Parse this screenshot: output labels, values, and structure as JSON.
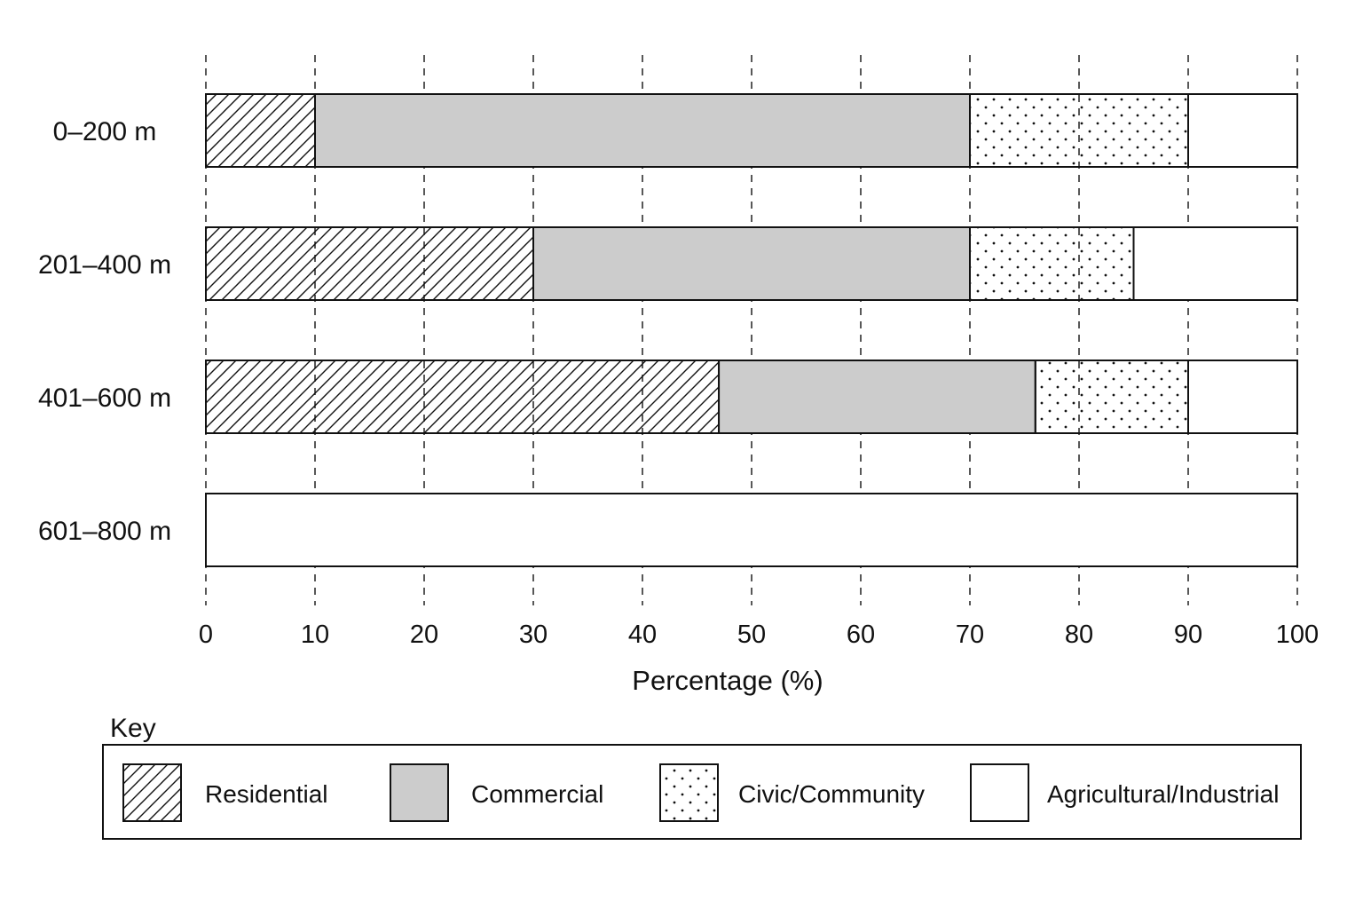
{
  "chart_data": {
    "type": "bar",
    "orientation": "horizontal",
    "stacked": true,
    "categories": [
      "0–200 m",
      "201–400 m",
      "401–600 m",
      "601–800 m"
    ],
    "series": [
      {
        "name": "Residential",
        "values": [
          10,
          30,
          47,
          0
        ],
        "pattern": "hatch"
      },
      {
        "name": "Commercial",
        "values": [
          60,
          40,
          29,
          0
        ],
        "pattern": "solid",
        "color": "#cccccc"
      },
      {
        "name": "Civic/Community",
        "values": [
          20,
          15,
          14,
          0
        ],
        "pattern": "dots"
      },
      {
        "name": "Agricultural/Industrial",
        "values": [
          10,
          15,
          10,
          100
        ],
        "pattern": "none",
        "color": "#ffffff"
      }
    ],
    "xlabel": "Percentage (%)",
    "ylabel": "",
    "xlim": [
      0,
      100
    ],
    "xticks": [
      0,
      10,
      20,
      30,
      40,
      50,
      60,
      70,
      80,
      90,
      100
    ],
    "grid": "vertical-dashed",
    "legend": {
      "title": "Key",
      "placement": "bottom"
    }
  }
}
